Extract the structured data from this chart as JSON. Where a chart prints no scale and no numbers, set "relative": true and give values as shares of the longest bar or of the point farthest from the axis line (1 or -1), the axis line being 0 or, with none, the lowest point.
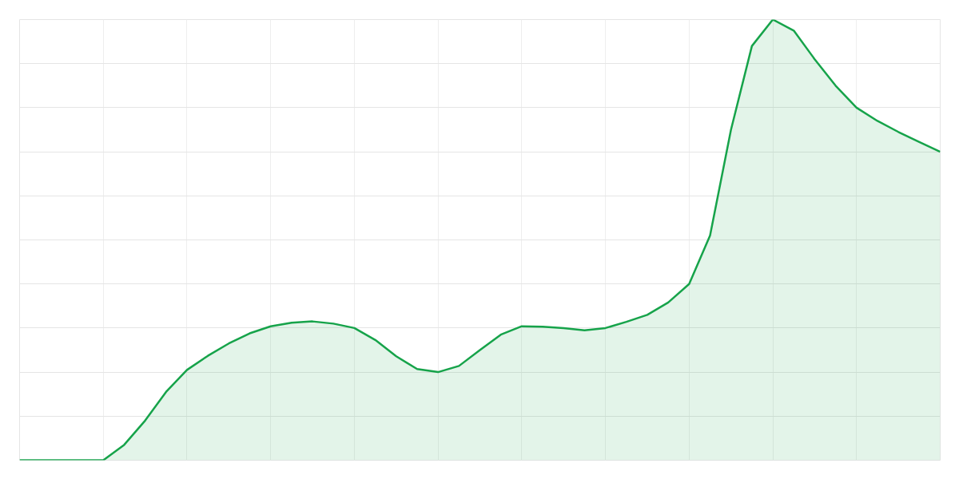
{
  "chart_data": {
    "type": "area",
    "relative": true,
    "categories": [
      null,
      null,
      null,
      null,
      null,
      null,
      null,
      null,
      null,
      null,
      null,
      null,
      null,
      null,
      null,
      null,
      null,
      null,
      null,
      null,
      null,
      null,
      null,
      null,
      null,
      null,
      null,
      null,
      null,
      null,
      null,
      null,
      null,
      null,
      null,
      null,
      null,
      null,
      null,
      null,
      null,
      null,
      null,
      null,
      null
    ],
    "series": [
      {
        "color": "#16a34a",
        "values": [
          0,
          0,
          0,
          0,
          0,
          0.035,
          0.09,
          0.155,
          0.205,
          0.237,
          0.265,
          0.288,
          0.304,
          0.312,
          0.315,
          0.31,
          0.3,
          0.273,
          0.236,
          0.207,
          0.2,
          0.214,
          0.25,
          0.285,
          0.304,
          0.303,
          0.3,
          0.295,
          0.3,
          0.314,
          0.33,
          0.358,
          0.4,
          0.51,
          0.75,
          0.94,
          1,
          0.975,
          0.91,
          0.85,
          0.8,
          0.77,
          0.745,
          0.722,
          0.7
        ]
      }
    ],
    "grid": true
  }
}
